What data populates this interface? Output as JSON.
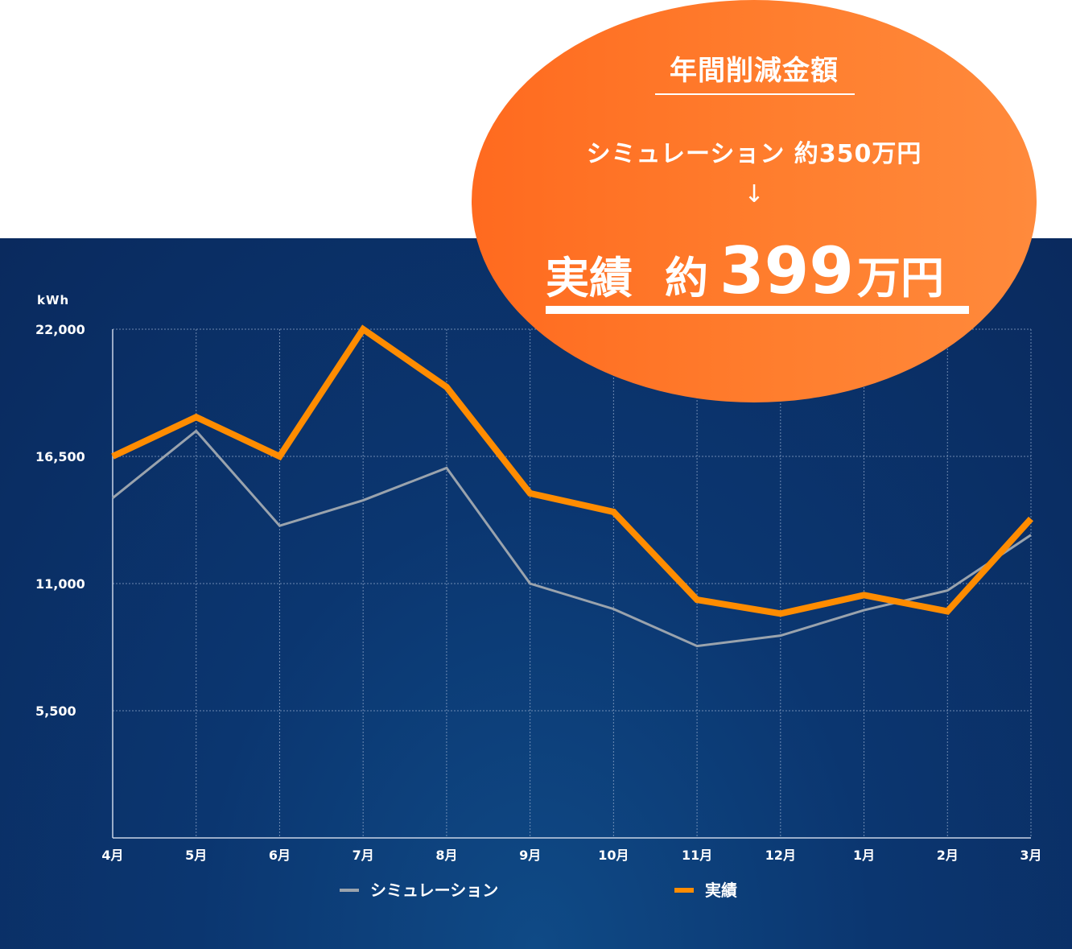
{
  "chart_data": {
    "type": "line",
    "unit_label": "kWh",
    "categories": [
      "4月",
      "5月",
      "6月",
      "7月",
      "8月",
      "9月",
      "10月",
      "11月",
      "12月",
      "1月",
      "2月",
      "3月"
    ],
    "y_ticks": [
      "22,000",
      "16,500",
      "11,000",
      "5,500"
    ],
    "y_tick_values": [
      22000,
      16500,
      11000,
      5500
    ],
    "ylim": [
      0,
      22000
    ],
    "grid": true,
    "legend_position": "bottom",
    "series": [
      {
        "name": "シミュレーション",
        "color": "#9aa3ad",
        "values": [
          14700,
          17600,
          13500,
          14600,
          16000,
          11000,
          9900,
          8300,
          8750,
          9850,
          10700,
          13100
        ]
      },
      {
        "name": "実績",
        "color": "#ff8c00",
        "values": [
          16500,
          18200,
          16500,
          22000,
          19500,
          14900,
          14100,
          10300,
          9700,
          10500,
          9800,
          13800
        ]
      }
    ]
  },
  "savings": {
    "title": "年間削減金額",
    "simulation_text": "シミュレーション 約350万円",
    "arrow": "↓",
    "result_label": "実績",
    "result_about": "約",
    "result_amount": "399",
    "result_unit": "万円"
  },
  "colors": {
    "bubble_orange": "#ff7a2a",
    "background_navy": "#0b3670"
  }
}
